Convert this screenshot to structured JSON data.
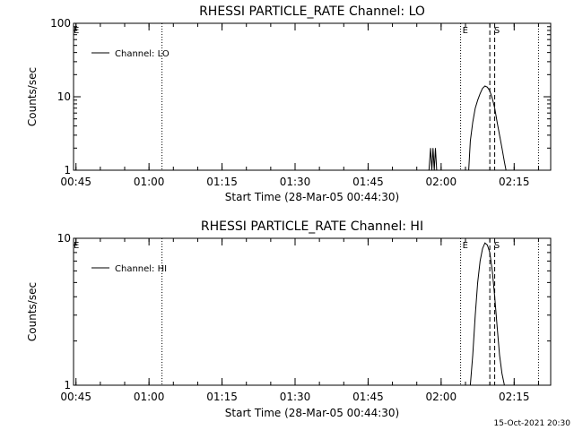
{
  "footer": {
    "date": "15-Oct-2021 20:30"
  },
  "chart_data": [
    {
      "type": "line",
      "title": "RHESSI PARTICLE_RATE Channel: LO",
      "xlabel": "Start Time (28-Mar-05 00:44:30)",
      "ylabel": "Counts/sec",
      "y_scale": "log",
      "xlim": [
        "00:44:30",
        "02:22:30"
      ],
      "ylim": [
        1,
        100
      ],
      "x_tick_labels": [
        "00:45",
        "01:00",
        "01:15",
        "01:30",
        "01:45",
        "02:00",
        "02:15"
      ],
      "y_tick_labels": [
        "1",
        "10",
        "100"
      ],
      "legend": {
        "label": "Channel: LO",
        "placement": "top-left"
      },
      "markers": [
        {
          "label": "E",
          "time": "02:04:00",
          "style": "dotted"
        },
        {
          "label": "S",
          "time": "02:10:30",
          "style": "dashed"
        }
      ],
      "extra_dotted_lines": [
        "01:02:40",
        "02:20:00"
      ],
      "dashed_lines": [
        "02:10:00",
        "02:11:00"
      ],
      "series": [
        {
          "name": "Channel: LO",
          "x": [
            "01:57:30",
            "01:57:50",
            "01:58:05",
            "01:58:20",
            "01:58:35",
            "01:58:50",
            "01:59:05",
            "01:59:20",
            "02:05:40",
            "02:06:00",
            "02:06:30",
            "02:07:00",
            "02:07:30",
            "02:08:00",
            "02:08:30",
            "02:09:00",
            "02:09:30",
            "02:10:00",
            "02:10:30",
            "02:11:00",
            "02:11:30",
            "02:12:00",
            "02:12:30",
            "02:13:00",
            "02:13:20"
          ],
          "y": [
            1.0,
            2.0,
            1.0,
            2.0,
            1.0,
            2.0,
            1.0,
            1.0,
            1.0,
            2.5,
            4.5,
            7.0,
            9.0,
            11.0,
            13.0,
            14.0,
            13.5,
            12.0,
            9.5,
            7.0,
            4.5,
            3.0,
            2.0,
            1.3,
            1.0
          ]
        }
      ]
    },
    {
      "type": "line",
      "title": "RHESSI PARTICLE_RATE Channel: HI",
      "xlabel": "Start Time (28-Mar-05 00:44:30)",
      "ylabel": "Counts/sec",
      "y_scale": "log",
      "xlim": [
        "00:44:30",
        "02:22:30"
      ],
      "ylim": [
        1,
        10
      ],
      "x_tick_labels": [
        "00:45",
        "01:00",
        "01:15",
        "01:30",
        "01:45",
        "02:00",
        "02:15"
      ],
      "y_tick_labels": [
        "1",
        "10"
      ],
      "legend": {
        "label": "Channel: HI",
        "placement": "top-left"
      },
      "markers": [
        {
          "label": "E",
          "time": "02:04:00",
          "style": "dotted"
        },
        {
          "label": "S",
          "time": "02:10:30",
          "style": "dashed"
        }
      ],
      "extra_dotted_lines": [
        "01:02:40",
        "02:20:00"
      ],
      "dashed_lines": [
        "02:10:00",
        "02:11:00"
      ],
      "series": [
        {
          "name": "Channel: HI",
          "x": [
            "02:06:00",
            "02:06:30",
            "02:07:00",
            "02:07:30",
            "02:08:00",
            "02:08:30",
            "02:09:00",
            "02:09:30",
            "02:10:00",
            "02:10:30",
            "02:11:00",
            "02:11:30",
            "02:12:00",
            "02:12:30",
            "02:13:00"
          ],
          "y": [
            1.0,
            1.6,
            3.0,
            5.0,
            7.0,
            8.5,
            9.3,
            9.0,
            8.0,
            6.0,
            4.0,
            2.5,
            1.6,
            1.2,
            1.0
          ]
        }
      ]
    }
  ]
}
